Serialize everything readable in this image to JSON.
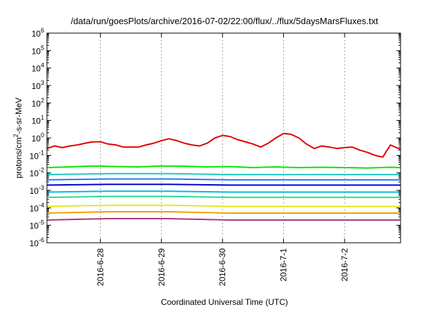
{
  "chart_data": {
    "type": "line",
    "title": "/data/run/goesPlots/archive/2016-07-02/22:00/flux/../flux/5daysMarsFluxes.txt",
    "xlabel": "Coordinated Universal Time (UTC)",
    "ylabel_base": "protons/cm",
    "ylabel_sup": "2",
    "ylabel_rest": "-s-sr-MeV",
    "yscale": "log",
    "ylim": [
      1e-06,
      1000000.0
    ],
    "xlim": [
      "2016-06-27 03:00",
      "2016-07-02 22:00"
    ],
    "grid": true,
    "y_ticks": [
      {
        "base": "10",
        "exp": "6"
      },
      {
        "base": "10",
        "exp": "5"
      },
      {
        "base": "10",
        "exp": "4"
      },
      {
        "base": "10",
        "exp": "3"
      },
      {
        "base": "10",
        "exp": "2"
      },
      {
        "base": "10",
        "exp": "1"
      },
      {
        "base": "10",
        "exp": "0"
      },
      {
        "base": "10",
        "exp": "-1"
      },
      {
        "base": "10",
        "exp": "-2"
      },
      {
        "base": "10",
        "exp": "-3"
      },
      {
        "base": "10",
        "exp": "-4"
      },
      {
        "base": "10",
        "exp": "-5"
      },
      {
        "base": "10",
        "exp": "-6"
      }
    ],
    "x_ticks": [
      "2016-6-28",
      "2016-6-29",
      "2016-6-30",
      "2016-7-1",
      "2016-7-2"
    ],
    "series": [
      {
        "color": "#e00000",
        "x": [
          "2016-06-27 03:00",
          "2016-06-27 06:00",
          "2016-06-27 09:00",
          "2016-06-27 12:00",
          "2016-06-27 15:00",
          "2016-06-27 18:00",
          "2016-06-27 21:00",
          "2016-06-28 00:00",
          "2016-06-28 03:00",
          "2016-06-28 06:00",
          "2016-06-28 09:00",
          "2016-06-28 12:00",
          "2016-06-28 15:00",
          "2016-06-28 18:00",
          "2016-06-28 21:00",
          "2016-06-29 00:00",
          "2016-06-29 03:00",
          "2016-06-29 06:00",
          "2016-06-29 09:00",
          "2016-06-29 12:00",
          "2016-06-29 15:00",
          "2016-06-29 18:00",
          "2016-06-29 21:00",
          "2016-06-30 00:00",
          "2016-06-30 03:00",
          "2016-06-30 06:00",
          "2016-06-30 09:00",
          "2016-06-30 12:00",
          "2016-06-30 15:00",
          "2016-06-30 18:00",
          "2016-06-30 21:00",
          "2016-07-01 00:00",
          "2016-07-01 03:00",
          "2016-07-01 06:00",
          "2016-07-01 09:00",
          "2016-07-01 12:00",
          "2016-07-01 15:00",
          "2016-07-01 18:00",
          "2016-07-01 21:00",
          "2016-07-02 00:00",
          "2016-07-02 03:00",
          "2016-07-02 06:00",
          "2016-07-02 09:00",
          "2016-07-02 12:00",
          "2016-07-02 15:00",
          "2016-07-02 18:00",
          "2016-07-02 22:00"
        ],
        "values": [
          0.25,
          0.35,
          0.28,
          0.35,
          0.4,
          0.5,
          0.6,
          0.6,
          0.45,
          0.4,
          0.3,
          0.3,
          0.3,
          0.4,
          0.5,
          0.7,
          0.9,
          0.7,
          0.5,
          0.4,
          0.35,
          0.5,
          1.0,
          1.4,
          1.2,
          0.8,
          0.6,
          0.45,
          0.3,
          0.5,
          1.0,
          1.8,
          1.6,
          1.0,
          0.45,
          0.25,
          0.35,
          0.3,
          0.25,
          0.28,
          0.3,
          0.2,
          0.15,
          0.1,
          0.08,
          0.4,
          0.22
        ]
      },
      {
        "color": "#00e800",
        "x": [
          "2016-06-27 03:00",
          "2016-06-27 12:00",
          "2016-06-27 21:00",
          "2016-06-28 06:00",
          "2016-06-28 15:00",
          "2016-06-29 00:00",
          "2016-06-29 09:00",
          "2016-06-29 18:00",
          "2016-06-30 03:00",
          "2016-06-30 12:00",
          "2016-06-30 21:00",
          "2016-07-01 06:00",
          "2016-07-01 15:00",
          "2016-07-02 00:00",
          "2016-07-02 09:00",
          "2016-07-02 18:00",
          "2016-07-02 22:00"
        ],
        "values": [
          0.02,
          0.022,
          0.025,
          0.023,
          0.022,
          0.025,
          0.024,
          0.022,
          0.023,
          0.02,
          0.022,
          0.02,
          0.021,
          0.02,
          0.019,
          0.021,
          0.02
        ]
      },
      {
        "color": "#20c8c0",
        "x": [
          "2016-06-27 03:00",
          "2016-06-28 03:00",
          "2016-06-29 03:00",
          "2016-06-30 03:00",
          "2016-07-01 03:00",
          "2016-07-02 03:00",
          "2016-07-02 22:00"
        ],
        "values": [
          0.008,
          0.009,
          0.009,
          0.008,
          0.008,
          0.008,
          0.008
        ]
      },
      {
        "color": "#1e78ff",
        "x": [
          "2016-06-27 03:00",
          "2016-06-28 03:00",
          "2016-06-29 03:00",
          "2016-06-30 03:00",
          "2016-07-01 03:00",
          "2016-07-02 03:00",
          "2016-07-02 22:00"
        ],
        "values": [
          0.004,
          0.0045,
          0.0045,
          0.004,
          0.004,
          0.004,
          0.004
        ]
      },
      {
        "color": "#0000c8",
        "x": [
          "2016-06-27 03:00",
          "2016-06-28 03:00",
          "2016-06-29 03:00",
          "2016-06-30 03:00",
          "2016-07-01 03:00",
          "2016-07-02 03:00",
          "2016-07-02 22:00"
        ],
        "values": [
          0.002,
          0.0022,
          0.0022,
          0.002,
          0.002,
          0.002,
          0.002
        ]
      },
      {
        "color": "#00b8e8",
        "x": [
          "2016-06-27 03:00",
          "2016-06-28 03:00",
          "2016-06-29 03:00",
          "2016-06-30 03:00",
          "2016-07-01 03:00",
          "2016-07-02 03:00",
          "2016-07-02 22:00"
        ],
        "values": [
          0.0008,
          0.0009,
          0.0009,
          0.0008,
          0.0008,
          0.0008,
          0.0008
        ]
      },
      {
        "color": "#30d890",
        "x": [
          "2016-06-27 03:00",
          "2016-06-28 03:00",
          "2016-06-29 03:00",
          "2016-06-30 03:00",
          "2016-07-01 03:00",
          "2016-07-02 03:00",
          "2016-07-02 22:00"
        ],
        "values": [
          0.0004,
          0.00045,
          0.00045,
          0.0004,
          0.0004,
          0.0004,
          0.0004
        ]
      },
      {
        "color": "#e8e820",
        "x": [
          "2016-06-27 03:00",
          "2016-06-28 03:00",
          "2016-06-29 03:00",
          "2016-06-30 03:00",
          "2016-07-01 03:00",
          "2016-07-02 03:00",
          "2016-07-02 22:00"
        ],
        "values": [
          0.00012,
          0.00014,
          0.00014,
          0.00012,
          0.00012,
          0.00012,
          0.00012
        ]
      },
      {
        "color": "#f0a000",
        "x": [
          "2016-06-27 03:00",
          "2016-06-28 03:00",
          "2016-06-29 03:00",
          "2016-06-30 03:00",
          "2016-07-01 03:00",
          "2016-07-02 03:00",
          "2016-07-02 22:00"
        ],
        "values": [
          5e-05,
          6e-05,
          6e-05,
          5e-05,
          5e-05,
          5e-05,
          5e-05
        ]
      },
      {
        "color": "#a03c78",
        "x": [
          "2016-06-27 03:00",
          "2016-06-28 03:00",
          "2016-06-29 03:00",
          "2016-06-30 03:00",
          "2016-07-01 03:00",
          "2016-07-02 03:00",
          "2016-07-02 22:00"
        ],
        "values": [
          2e-05,
          2.4e-05,
          2.4e-05,
          2e-05,
          2e-05,
          2e-05,
          2e-05
        ]
      }
    ]
  }
}
